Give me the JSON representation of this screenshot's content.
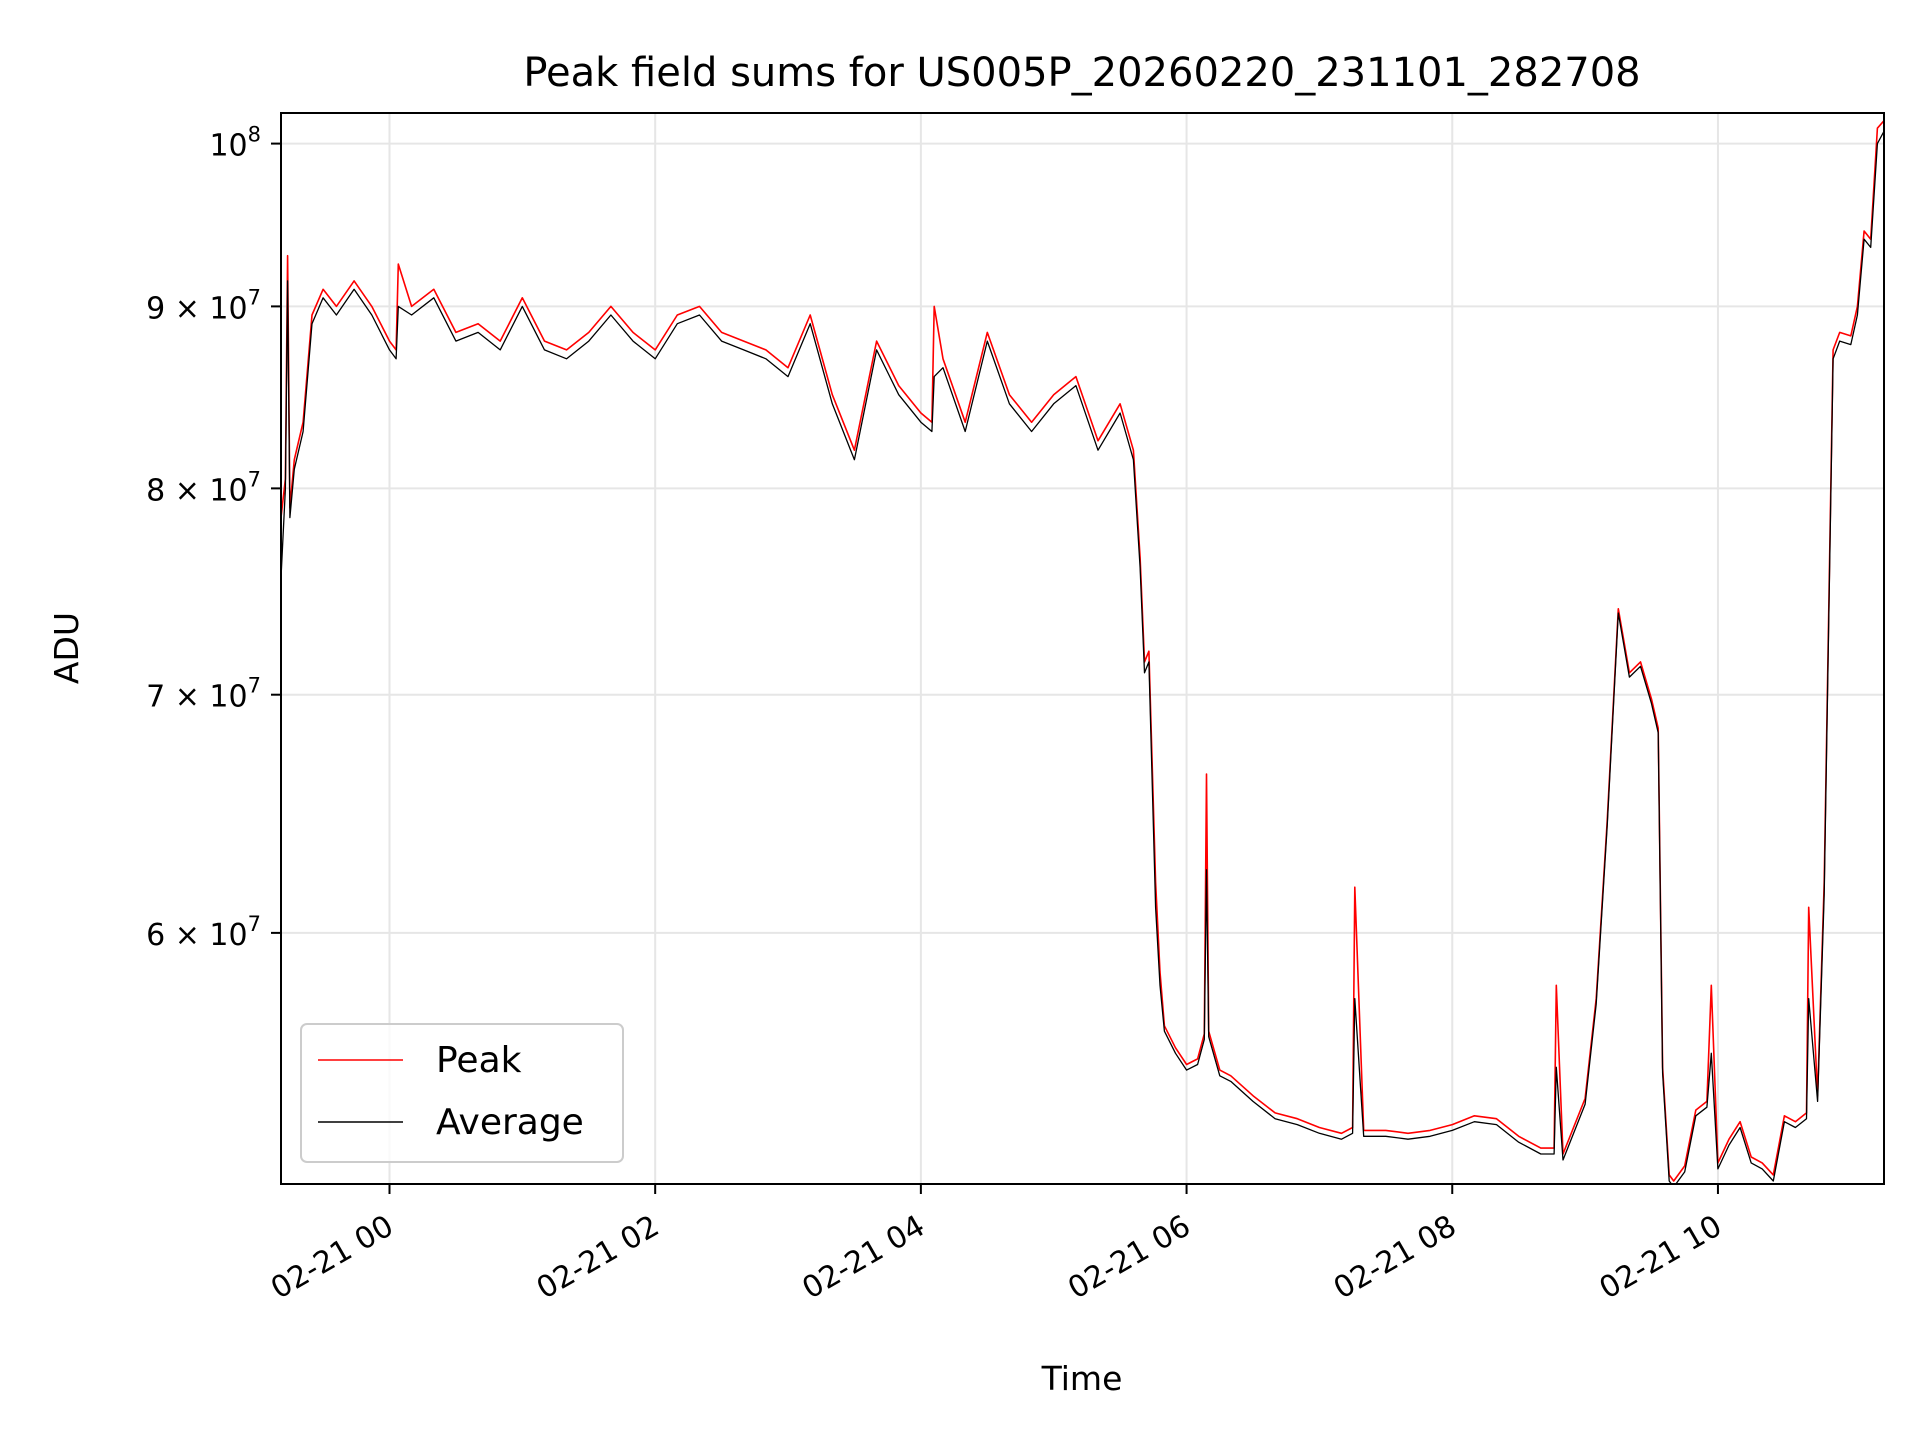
{
  "chart_data": {
    "type": "line",
    "title": "Peak field sums for US005P_20260220_231101_282708",
    "xlabel": "Time",
    "ylabel": "ADU",
    "y_scale": "log",
    "xlim": [
      "02-20 23:11",
      "02-21 11:15"
    ],
    "ylim": [
      51000000,
      102000000
    ],
    "grid": true,
    "legend_position": "lower-left",
    "x_ticks": [
      {
        "at": "02-21 00:00",
        "label": "02-21 00"
      },
      {
        "at": "02-21 02:00",
        "label": "02-21 02"
      },
      {
        "at": "02-21 04:00",
        "label": "02-21 04"
      },
      {
        "at": "02-21 06:00",
        "label": "02-21 06"
      },
      {
        "at": "02-21 08:00",
        "label": "02-21 08"
      },
      {
        "at": "02-21 10:00",
        "label": "02-21 10"
      }
    ],
    "y_ticks": [
      {
        "value": 60000000,
        "base": "6",
        "exp": "7"
      },
      {
        "value": 70000000,
        "base": "7",
        "exp": "7"
      },
      {
        "value": 80000000,
        "base": "8",
        "exp": "7"
      },
      {
        "value": 90000000,
        "base": "9",
        "exp": "7"
      },
      {
        "value": 100000000,
        "base": "",
        "exp": "8"
      }
    ],
    "series": [
      {
        "name": "Peak",
        "color": "#ff0000",
        "x": [
          "02-20 23:11",
          "02-20 23:13",
          "02-20 23:14",
          "02-20 23:15",
          "02-20 23:17",
          "02-20 23:21",
          "02-20 23:25",
          "02-20 23:30",
          "02-20 23:36",
          "02-20 23:44",
          "02-20 23:52",
          "02-21 00:00",
          "02-21 00:03",
          "02-21 00:04",
          "02-21 00:10",
          "02-21 00:20",
          "02-21 00:30",
          "02-21 00:40",
          "02-21 00:50",
          "02-21 01:00",
          "02-21 01:10",
          "02-21 01:20",
          "02-21 01:30",
          "02-21 01:40",
          "02-21 01:50",
          "02-21 02:00",
          "02-21 02:10",
          "02-21 02:20",
          "02-21 02:30",
          "02-21 02:40",
          "02-21 02:50",
          "02-21 03:00",
          "02-21 03:10",
          "02-21 03:20",
          "02-21 03:30",
          "02-21 03:40",
          "02-21 03:50",
          "02-21 04:00",
          "02-21 04:05",
          "02-21 04:06",
          "02-21 04:10",
          "02-21 04:20",
          "02-21 04:30",
          "02-21 04:40",
          "02-21 04:50",
          "02-21 05:00",
          "02-21 05:10",
          "02-21 05:20",
          "02-21 05:30",
          "02-21 05:36",
          "02-21 05:39",
          "02-21 05:41",
          "02-21 05:43",
          "02-21 05:46",
          "02-21 05:48",
          "02-21 05:50",
          "02-21 05:55",
          "02-21 06:00",
          "02-21 06:05",
          "02-21 06:08",
          "02-21 06:09",
          "02-21 06:10",
          "02-21 06:15",
          "02-21 06:20",
          "02-21 06:30",
          "02-21 06:40",
          "02-21 06:50",
          "02-21 07:00",
          "02-21 07:10",
          "02-21 07:15",
          "02-21 07:16",
          "02-21 07:20",
          "02-21 07:30",
          "02-21 07:40",
          "02-21 07:50",
          "02-21 08:00",
          "02-21 08:10",
          "02-21 08:20",
          "02-21 08:30",
          "02-21 08:40",
          "02-21 08:46",
          "02-21 08:47",
          "02-21 08:50",
          "02-21 09:00",
          "02-21 09:05",
          "02-21 09:10",
          "02-21 09:15",
          "02-21 09:20",
          "02-21 09:25",
          "02-21 09:30",
          "02-21 09:33",
          "02-21 09:35",
          "02-21 09:38",
          "02-21 09:40",
          "02-21 09:45",
          "02-21 09:50",
          "02-21 09:55",
          "02-21 09:57",
          "02-21 10:00",
          "02-21 10:05",
          "02-21 10:10",
          "02-21 10:15",
          "02-21 10:20",
          "02-21 10:25",
          "02-21 10:30",
          "02-21 10:35",
          "02-21 10:40",
          "02-21 10:41",
          "02-21 10:45",
          "02-21 10:48",
          "02-21 10:52",
          "02-21 10:55",
          "02-21 11:00",
          "02-21 11:03",
          "02-21 11:06",
          "02-21 11:09",
          "02-21 11:12",
          "02-21 11:15"
        ],
        "values": [
          78500000,
          80500000,
          93000000,
          79000000,
          81500000,
          83500000,
          89500000,
          91000000,
          90000000,
          91500000,
          90000000,
          88000000,
          87500000,
          92500000,
          90000000,
          91000000,
          88500000,
          89000000,
          88000000,
          90500000,
          88000000,
          87500000,
          88500000,
          90000000,
          88500000,
          87500000,
          89500000,
          90000000,
          88500000,
          88000000,
          87500000,
          86500000,
          89500000,
          85000000,
          82000000,
          88000000,
          85500000,
          84000000,
          83500000,
          90000000,
          87000000,
          83500000,
          88500000,
          85000000,
          83500000,
          85000000,
          86000000,
          82500000,
          84500000,
          82000000,
          76500000,
          71500000,
          72000000,
          62000000,
          58500000,
          56500000,
          55700000,
          55100000,
          55300000,
          56200000,
          66500000,
          56300000,
          54900000,
          54700000,
          54000000,
          53400000,
          53200000,
          52900000,
          52700000,
          52900000,
          61800000,
          52800000,
          52800000,
          52700000,
          52800000,
          53000000,
          53300000,
          53200000,
          52600000,
          52200000,
          52200000,
          58000000,
          52000000,
          53900000,
          57500000,
          64500000,
          74000000,
          71000000,
          71500000,
          69800000,
          68500000,
          55000000,
          51300000,
          51100000,
          51600000,
          53500000,
          53800000,
          58000000,
          51700000,
          52500000,
          53100000,
          51900000,
          51700000,
          51300000,
          53300000,
          53100000,
          53400000,
          61000000,
          54000000,
          62000000,
          87500000,
          88500000,
          88300000,
          90000000,
          94500000,
          94000000,
          101000000,
          101500000
        ]
      },
      {
        "name": "Average",
        "color": "#000000",
        "x": [
          "02-20 23:11",
          "02-20 23:13",
          "02-20 23:14",
          "02-20 23:15",
          "02-20 23:17",
          "02-20 23:21",
          "02-20 23:25",
          "02-20 23:30",
          "02-20 23:36",
          "02-20 23:44",
          "02-20 23:52",
          "02-21 00:00",
          "02-21 00:03",
          "02-21 00:04",
          "02-21 00:10",
          "02-21 00:20",
          "02-21 00:30",
          "02-21 00:40",
          "02-21 00:50",
          "02-21 01:00",
          "02-21 01:10",
          "02-21 01:20",
          "02-21 01:30",
          "02-21 01:40",
          "02-21 01:50",
          "02-21 02:00",
          "02-21 02:10",
          "02-21 02:20",
          "02-21 02:30",
          "02-21 02:40",
          "02-21 02:50",
          "02-21 03:00",
          "02-21 03:10",
          "02-21 03:20",
          "02-21 03:30",
          "02-21 03:40",
          "02-21 03:50",
          "02-21 04:00",
          "02-21 04:05",
          "02-21 04:06",
          "02-21 04:10",
          "02-21 04:20",
          "02-21 04:30",
          "02-21 04:40",
          "02-21 04:50",
          "02-21 05:00",
          "02-21 05:10",
          "02-21 05:20",
          "02-21 05:30",
          "02-21 05:36",
          "02-21 05:39",
          "02-21 05:41",
          "02-21 05:43",
          "02-21 05:46",
          "02-21 05:48",
          "02-21 05:50",
          "02-21 05:55",
          "02-21 06:00",
          "02-21 06:05",
          "02-21 06:08",
          "02-21 06:09",
          "02-21 06:10",
          "02-21 06:15",
          "02-21 06:20",
          "02-21 06:30",
          "02-21 06:40",
          "02-21 06:50",
          "02-21 07:00",
          "02-21 07:10",
          "02-21 07:15",
          "02-21 07:16",
          "02-21 07:20",
          "02-21 07:30",
          "02-21 07:40",
          "02-21 07:50",
          "02-21 08:00",
          "02-21 08:10",
          "02-21 08:20",
          "02-21 08:30",
          "02-21 08:40",
          "02-21 08:46",
          "02-21 08:47",
          "02-21 08:50",
          "02-21 09:00",
          "02-21 09:05",
          "02-21 09:10",
          "02-21 09:15",
          "02-21 09:20",
          "02-21 09:25",
          "02-21 09:30",
          "02-21 09:33",
          "02-21 09:35",
          "02-21 09:38",
          "02-21 09:40",
          "02-21 09:45",
          "02-21 09:50",
          "02-21 09:55",
          "02-21 09:57",
          "02-21 10:00",
          "02-21 10:05",
          "02-21 10:10",
          "02-21 10:15",
          "02-21 10:20",
          "02-21 10:25",
          "02-21 10:30",
          "02-21 10:35",
          "02-21 10:40",
          "02-21 10:41",
          "02-21 10:45",
          "02-21 10:48",
          "02-21 10:52",
          "02-21 10:55",
          "02-21 11:00",
          "02-21 11:03",
          "02-21 11:06",
          "02-21 11:09",
          "02-21 11:12",
          "02-21 11:15"
        ],
        "values": [
          75500000,
          80000000,
          91500000,
          78500000,
          81000000,
          83000000,
          89000000,
          90500000,
          89500000,
          91000000,
          89500000,
          87500000,
          87000000,
          90000000,
          89500000,
          90500000,
          88000000,
          88500000,
          87500000,
          90000000,
          87500000,
          87000000,
          88000000,
          89500000,
          88000000,
          87000000,
          89000000,
          89500000,
          88000000,
          87500000,
          87000000,
          86000000,
          89000000,
          84500000,
          81500000,
          87500000,
          85000000,
          83500000,
          83000000,
          86000000,
          86500000,
          83000000,
          88000000,
          84500000,
          83000000,
          84500000,
          85500000,
          82000000,
          84000000,
          81500000,
          76000000,
          71000000,
          71500000,
          61000000,
          58000000,
          56300000,
          55500000,
          54900000,
          55100000,
          56000000,
          62500000,
          56100000,
          54700000,
          54500000,
          53800000,
          53200000,
          53000000,
          52700000,
          52500000,
          52700000,
          57500000,
          52600000,
          52600000,
          52500000,
          52600000,
          52800000,
          53100000,
          53000000,
          52400000,
          52000000,
          52000000,
          55000000,
          51800000,
          53700000,
          57300000,
          64300000,
          73800000,
          70800000,
          71300000,
          69600000,
          68300000,
          54800000,
          51100000,
          50900000,
          51400000,
          53300000,
          53600000,
          55500000,
          51500000,
          52300000,
          52900000,
          51700000,
          51500000,
          51100000,
          53100000,
          52900000,
          53200000,
          57500000,
          53800000,
          61500000,
          87000000,
          88000000,
          87800000,
          89500000,
          94000000,
          93500000,
          100000000,
          100800000
        ]
      }
    ]
  }
}
